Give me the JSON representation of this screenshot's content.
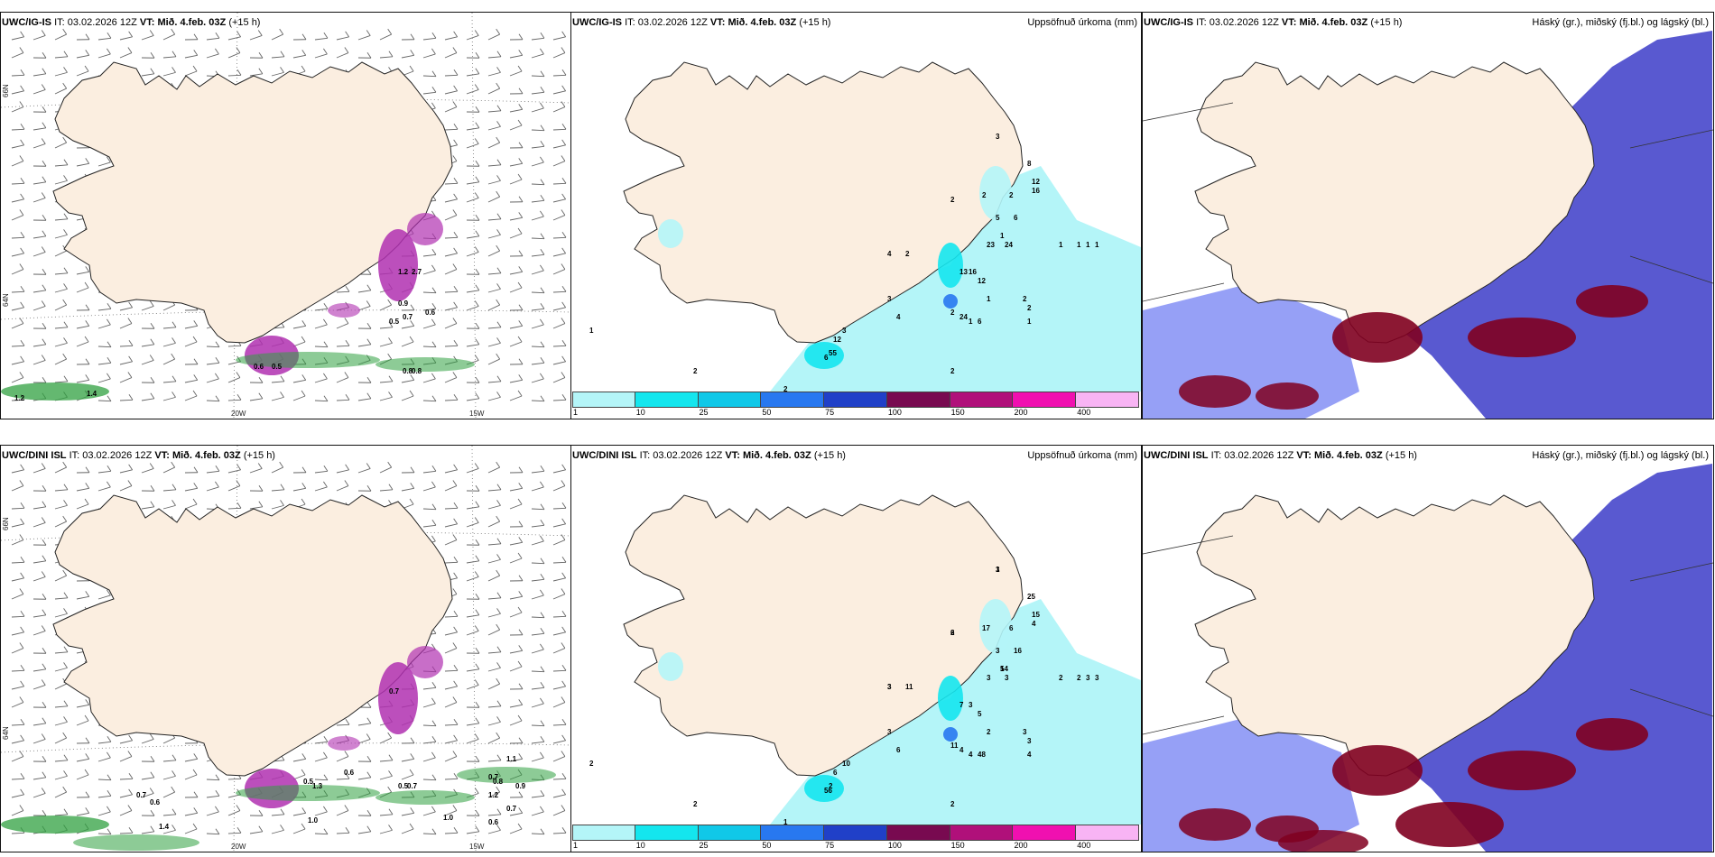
{
  "panels": [
    {
      "id": "p1",
      "model": "UWC/IG-IS",
      "it_label": "IT:",
      "it_value": "03.02.2026 12Z",
      "vt_label": "VT:",
      "vt_value": "Mið. 4.feb. 03Z",
      "lead": "(+15 h)",
      "right_title": ""
    },
    {
      "id": "p2",
      "model": "UWC/IG-IS",
      "it_label": "IT:",
      "it_value": "03.02.2026 12Z",
      "vt_label": "VT:",
      "vt_value": "Mið. 4.feb. 03Z",
      "lead": "(+15 h)",
      "right_title": "Uppsöfnuð úrkoma (mm)"
    },
    {
      "id": "p3",
      "model": "UWC/IG-IS",
      "it_label": "IT:",
      "it_value": "03.02.2026 12Z",
      "vt_label": "VT:",
      "vt_value": "Mið. 4.feb. 03Z",
      "lead": "(+15 h)",
      "right_title": "Háský (gr.), miðský (fj.bl.) og lágský (bl.)"
    },
    {
      "id": "p4",
      "model": "UWC/DINI ISL",
      "it_label": "IT:",
      "it_value": "03.02.2026 12Z",
      "vt_label": "VT:",
      "vt_value": "Mið. 4.feb. 03Z",
      "lead": "(+15 h)",
      "right_title": ""
    },
    {
      "id": "p5",
      "model": "UWC/DINI ISL",
      "it_label": "IT:",
      "it_value": "03.02.2026 12Z",
      "vt_label": "VT:",
      "vt_value": "Mið. 4.feb. 03Z",
      "lead": "(+15 h)",
      "right_title": "Uppsöfnuð úrkoma (mm)"
    },
    {
      "id": "p6",
      "model": "UWC/DINI ISL",
      "it_label": "IT:",
      "it_value": "03.02.2026 12Z",
      "vt_label": "VT:",
      "vt_value": "Mið. 4.feb. 03Z",
      "lead": "(+15 h)",
      "right_title": "Háský (gr.), miðský (fj.bl.) og lágský (bl.)"
    }
  ],
  "graticule": {
    "lat_66": "66N",
    "lat_64": "64N",
    "lon_20": "20W",
    "lon_15": "15W"
  },
  "colorbar": {
    "ticks": [
      "1",
      "10",
      "25",
      "50",
      "75",
      "100",
      "150",
      "200",
      "400"
    ],
    "colors": [
      "#b4f5f8",
      "#14e6ee",
      "#10c8e8",
      "#2878f0",
      "#2040c8",
      "#780a50",
      "#b0107a",
      "#f010b0",
      "#f8b4f4"
    ]
  },
  "colors": {
    "land": "#fbeee0",
    "wind_land": "#ead4be",
    "precip_purple": "#b030b0",
    "precip_green": "#30a040",
    "low_cloud": "#3c3cc8",
    "mid_cloud": "#5060f0",
    "high_cloud": "#800020"
  },
  "precip_labels": {
    "p1": [
      "0.5",
      "0.9",
      "2.7",
      "1.2",
      "0.7",
      "0.6",
      "0.6",
      "0.5",
      "0.8",
      "0.8",
      "1.2",
      "1.4"
    ],
    "p2": [
      "3",
      "2",
      "4",
      "1",
      "2",
      "2",
      "16",
      "12",
      "8",
      "6",
      "5",
      "24",
      "23",
      "13",
      "16",
      "12",
      "3",
      "4",
      "2",
      "2",
      "3",
      "12",
      "24",
      "6",
      "6",
      "55",
      "1",
      "1",
      "1",
      "1",
      "2",
      "2",
      "1",
      "1",
      "2",
      "2",
      "1",
      "2",
      "1"
    ],
    "p4": [
      "0.7",
      "0.6",
      "0.7",
      "1.3",
      "1.0",
      "0.6",
      "0.5",
      "1.2",
      "0.7",
      "0.8",
      "1.1",
      "0.9",
      "1.0",
      "0.6",
      "0.7",
      "1.4",
      "0.5",
      "0.7"
    ],
    "p5": [
      "1",
      "6",
      "3",
      "14",
      "17",
      "6",
      "4",
      "15",
      "25",
      "16",
      "3",
      "3",
      "3",
      "7",
      "3",
      "5",
      "3",
      "6",
      "11",
      "11",
      "10",
      "6",
      "4",
      "48",
      "56",
      "2",
      "2",
      "2",
      "3",
      "3",
      "3",
      "3",
      "4",
      "4",
      "2",
      "2",
      "2",
      "1",
      "2",
      "3",
      "2",
      "3",
      "5"
    ]
  }
}
